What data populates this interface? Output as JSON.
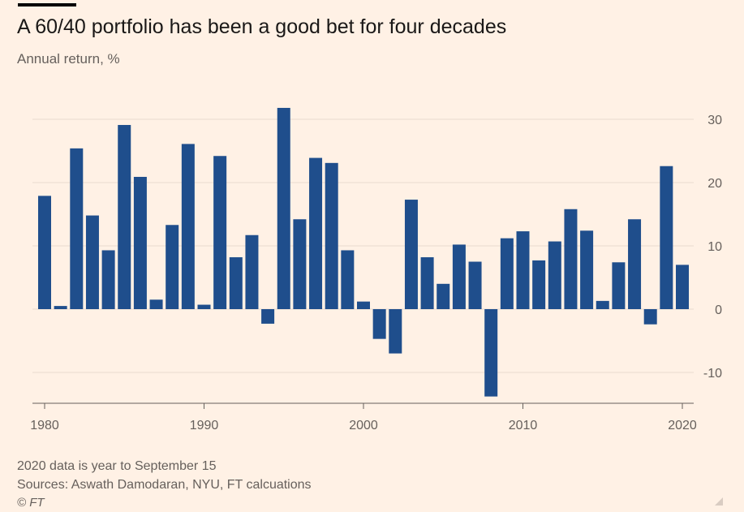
{
  "header": {
    "title": "A 60/40 portfolio has been a good bet for four decades",
    "subtitle": "Annual return, %"
  },
  "footer": {
    "note": "2020 data is year to September 15",
    "sources": "Sources: Aswath Damodaran, NYU, FT calcuations",
    "credit": "© FT"
  },
  "colors": {
    "bar": "#1f4e8c",
    "background": "#fff1e5",
    "grid": "#e8dbd0",
    "axis": "#66605c",
    "text": "#33302e"
  },
  "chart_data": {
    "type": "bar",
    "title": "A 60/40 portfolio has been a good bet for four decades",
    "ylabel": "Annual return, %",
    "xlabel": "",
    "ylim": [
      -15,
      33
    ],
    "yticks": [
      30,
      20,
      10,
      0,
      -10
    ],
    "ytick_labels": [
      "30",
      "20",
      "10",
      "0",
      "-10"
    ],
    "xticks": [
      1980,
      1990,
      2000,
      2010,
      2020
    ],
    "xtick_labels": [
      "1980",
      "1990",
      "2000",
      "2010",
      "2020"
    ],
    "grid": true,
    "categories": [
      1980,
      1981,
      1982,
      1983,
      1984,
      1985,
      1986,
      1987,
      1988,
      1989,
      1990,
      1991,
      1992,
      1993,
      1994,
      1995,
      1996,
      1997,
      1998,
      1999,
      2000,
      2001,
      2002,
      2003,
      2004,
      2005,
      2006,
      2007,
      2008,
      2009,
      2010,
      2011,
      2012,
      2013,
      2014,
      2015,
      2016,
      2017,
      2018,
      2019,
      2020
    ],
    "values": [
      17.9,
      0.5,
      25.4,
      14.8,
      9.3,
      29.1,
      20.9,
      1.5,
      13.3,
      26.1,
      0.7,
      24.2,
      8.2,
      11.7,
      -2.3,
      31.8,
      14.2,
      23.9,
      23.1,
      9.3,
      1.2,
      -4.7,
      -7.0,
      17.3,
      8.2,
      4.0,
      10.2,
      7.5,
      -13.8,
      11.2,
      12.3,
      7.7,
      10.7,
      15.8,
      12.4,
      1.3,
      7.4,
      14.2,
      -2.4,
      22.6,
      7.0
    ]
  }
}
